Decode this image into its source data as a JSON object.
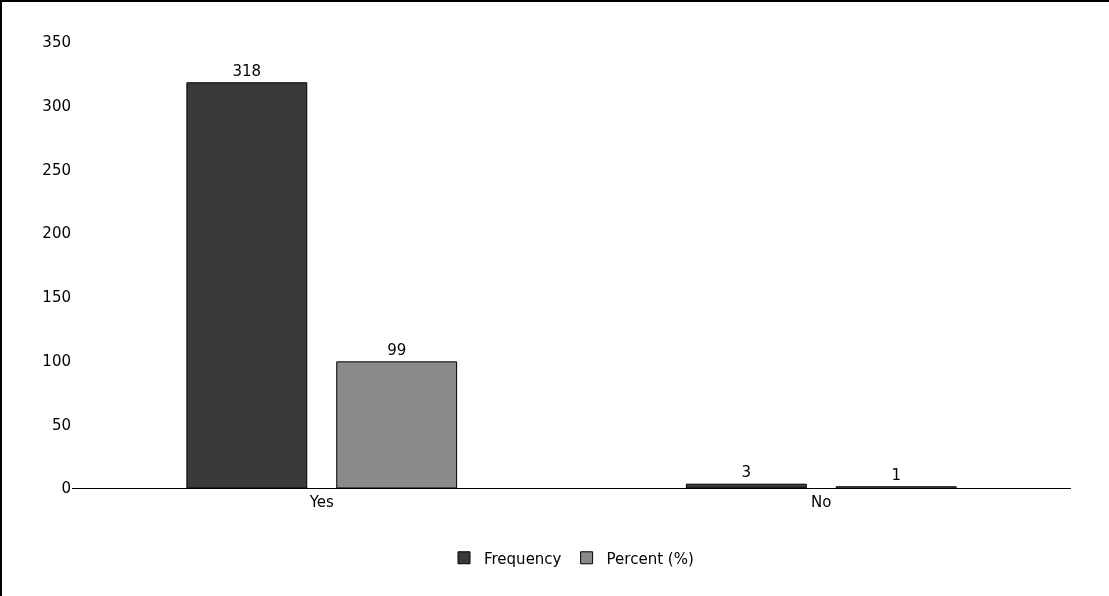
{
  "chart_data": {
    "type": "bar",
    "categories": [
      "Yes",
      "No"
    ],
    "series": [
      {
        "name": "Frequency",
        "color": "#3a3a3a",
        "values": [
          318,
          3
        ]
      },
      {
        "name": "Percent (%)",
        "color": "#8a8a8a",
        "values": [
          99,
          1
        ]
      }
    ],
    "ylim": [
      0,
      350
    ],
    "yticks": [
      0,
      50,
      100,
      150,
      200,
      250,
      300,
      350
    ],
    "grid": false,
    "legend": "bottom",
    "data_labels": true
  }
}
